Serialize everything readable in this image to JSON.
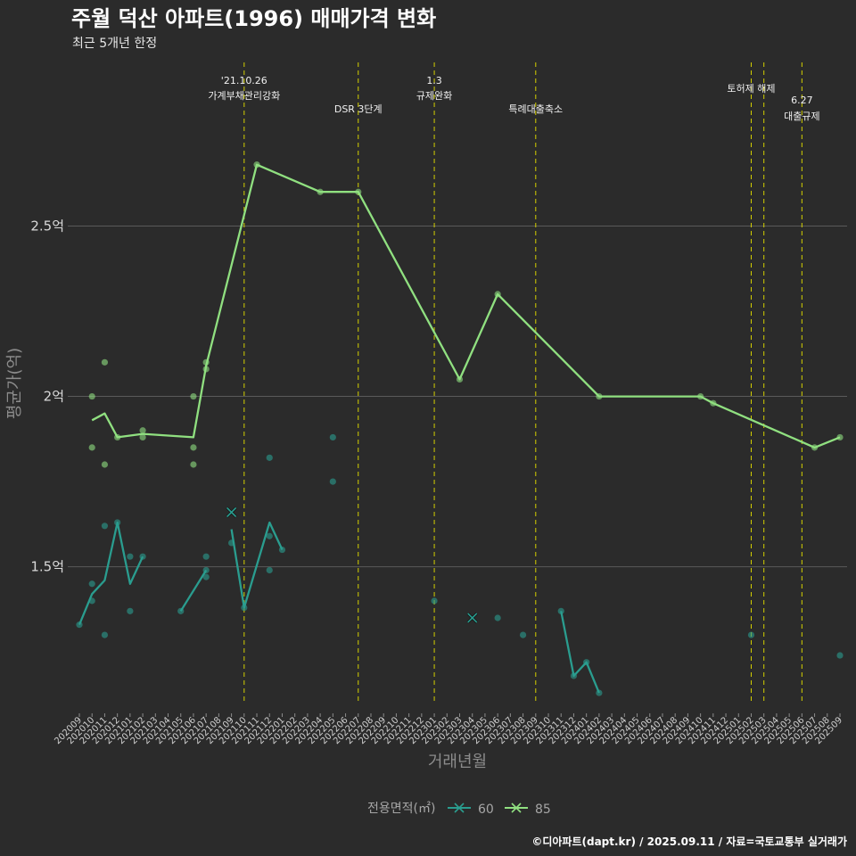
{
  "chart_data": {
    "type": "line",
    "title": "주월 덕산 아파트(1996) 매매가격 변화",
    "subtitle": "최근 5개년 한정",
    "xlabel": "거래년월",
    "ylabel": "평균가(억)",
    "ylim": [
      1.07,
      2.98
    ],
    "yticks": [
      {
        "value": 1.5,
        "label": "1.5억"
      },
      {
        "value": 2.0,
        "label": "2억"
      },
      {
        "value": 2.5,
        "label": "2.5억"
      }
    ],
    "grid": true,
    "categories": [
      "202009",
      "202010",
      "202011",
      "202012",
      "202101",
      "202102",
      "202103",
      "202104",
      "202105",
      "202106",
      "202107",
      "202108",
      "202109",
      "202110",
      "202111",
      "202112",
      "202201",
      "202202",
      "202203",
      "202204",
      "202205",
      "202206",
      "202207",
      "202208",
      "202209",
      "202210",
      "202211",
      "202212",
      "202301",
      "202302",
      "202303",
      "202304",
      "202305",
      "202306",
      "202307",
      "202308",
      "202309",
      "202310",
      "202311",
      "202312",
      "202401",
      "202402",
      "202403",
      "202404",
      "202405",
      "202406",
      "202407",
      "202408",
      "202409",
      "202410",
      "202411",
      "202412",
      "202501",
      "202502",
      "202503",
      "202504",
      "202505",
      "202506",
      "202507",
      "202508",
      "202509"
    ],
    "legend": {
      "title": "전용면적(㎡)",
      "position": "bottom"
    },
    "series": [
      {
        "name": "60",
        "color": "#2a9d8f",
        "lines": [
          [
            [
              "202009",
              1.33
            ],
            [
              "202010",
              1.42
            ],
            [
              "202011",
              1.46
            ],
            [
              "202012",
              1.63
            ],
            [
              "202101",
              1.45
            ],
            [
              "202102",
              1.53
            ]
          ],
          [
            [
              "202105",
              1.37
            ],
            [
              "202107",
              1.49
            ]
          ],
          [
            [
              "202109",
              1.61
            ],
            [
              "202110",
              1.38
            ],
            [
              "202112",
              1.63
            ],
            [
              "202201",
              1.55
            ]
          ],
          [
            [
              "202311",
              1.37
            ],
            [
              "202312",
              1.18
            ],
            [
              "202401",
              1.22
            ],
            [
              "202402",
              1.13
            ]
          ]
        ],
        "points": [
          [
            "202009",
            1.33
          ],
          [
            "202010",
            1.45
          ],
          [
            "202010",
            1.4
          ],
          [
            "202011",
            1.3
          ],
          [
            "202011",
            1.62
          ],
          [
            "202012",
            1.63
          ],
          [
            "202101",
            1.53
          ],
          [
            "202101",
            1.37
          ],
          [
            "202102",
            1.53
          ],
          [
            "202105",
            1.37
          ],
          [
            "202107",
            1.49
          ],
          [
            "202107",
            1.47
          ],
          [
            "202107",
            1.53
          ],
          [
            "202109",
            1.57
          ],
          [
            "202110",
            1.38
          ],
          [
            "202112",
            1.82
          ],
          [
            "202112",
            1.59
          ],
          [
            "202112",
            1.49
          ],
          [
            "202201",
            1.55
          ],
          [
            "202205",
            1.88
          ],
          [
            "202205",
            1.75
          ],
          [
            "202301",
            1.4
          ],
          [
            "202306",
            1.35
          ],
          [
            "202308",
            1.3
          ],
          [
            "202311",
            1.37
          ],
          [
            "202312",
            1.18
          ],
          [
            "202401",
            1.22
          ],
          [
            "202402",
            1.13
          ],
          [
            "202502",
            1.3
          ],
          [
            "202509",
            1.24
          ]
        ],
        "crosses": [
          [
            "202109",
            1.66
          ],
          [
            "202304",
            1.35
          ]
        ]
      },
      {
        "name": "85",
        "color": "#90e080",
        "lines": [
          [
            [
              "202010",
              1.93
            ],
            [
              "202011",
              1.95
            ],
            [
              "202012",
              1.88
            ],
            [
              "202102",
              1.89
            ],
            [
              "202106",
              1.88
            ],
            [
              "202107",
              2.09
            ],
            [
              "202111",
              2.68
            ],
            [
              "202204",
              2.6
            ],
            [
              "202207",
              2.6
            ],
            [
              "202303",
              2.05
            ],
            [
              "202306",
              2.3
            ],
            [
              "202402",
              2.0
            ],
            [
              "202410",
              2.0
            ],
            [
              "202411",
              1.98
            ],
            [
              "202507",
              1.85
            ],
            [
              "202509",
              1.88
            ]
          ]
        ],
        "points": [
          [
            "202010",
            2.0
          ],
          [
            "202010",
            1.85
          ],
          [
            "202011",
            2.1
          ],
          [
            "202011",
            1.8
          ],
          [
            "202012",
            1.88
          ],
          [
            "202102",
            1.9
          ],
          [
            "202102",
            1.88
          ],
          [
            "202106",
            2.0
          ],
          [
            "202106",
            1.85
          ],
          [
            "202106",
            1.8
          ],
          [
            "202107",
            2.1
          ],
          [
            "202107",
            2.08
          ],
          [
            "202111",
            2.68
          ],
          [
            "202204",
            2.6
          ],
          [
            "202207",
            2.6
          ],
          [
            "202303",
            2.05
          ],
          [
            "202306",
            2.3
          ],
          [
            "202402",
            2.0
          ],
          [
            "202410",
            2.0
          ],
          [
            "202411",
            1.98
          ],
          [
            "202507",
            1.85
          ],
          [
            "202509",
            1.88
          ]
        ],
        "crosses": []
      }
    ],
    "annotations": [
      {
        "category": "202110",
        "lines": [
          "'21.10.26",
          "가계부채관리강화"
        ]
      },
      {
        "category": "202207",
        "lines": [
          "DSR 3단계"
        ]
      },
      {
        "category": "202301",
        "lines": [
          "1.3",
          "규제완화"
        ]
      },
      {
        "category": "202309",
        "lines": [
          "특례대출축소"
        ]
      },
      {
        "category": "202502",
        "lines": [
          "토허제 해제"
        ]
      },
      {
        "category": "202503",
        "lines": []
      },
      {
        "category": "202506",
        "lines": [
          "6.27",
          "대출규제"
        ]
      }
    ]
  },
  "caption": "©디아파트(dapt.kr) / 2025.09.11 / 자료=국토교통부 실거래가"
}
